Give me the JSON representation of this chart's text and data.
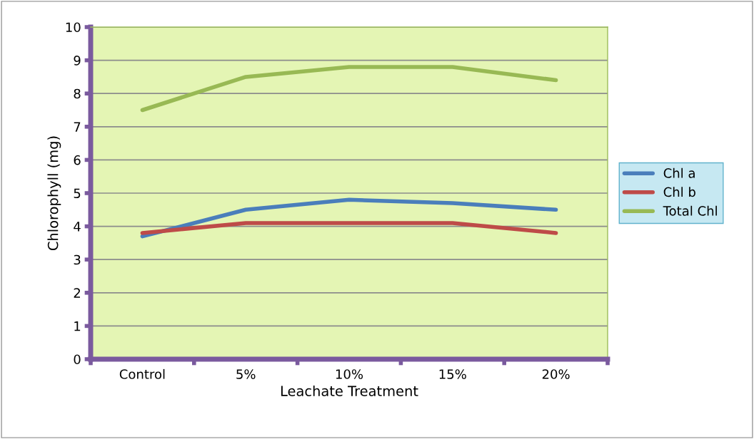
{
  "chart_data": {
    "type": "line",
    "xlabel": "Leachate Treatment",
    "ylabel": "Chlorophyll (mg)",
    "categories": [
      "Control",
      "5%",
      "10%",
      "15%",
      "20%"
    ],
    "series": [
      {
        "name": "Chl a",
        "color": "#4a7ebb",
        "values": [
          3.7,
          4.5,
          4.8,
          4.7,
          4.5
        ]
      },
      {
        "name": "Chl b",
        "color": "#be4b48",
        "values": [
          3.8,
          4.1,
          4.1,
          4.1,
          3.8
        ]
      },
      {
        "name": "Total Chl",
        "color": "#98b954",
        "values": [
          7.5,
          8.5,
          8.8,
          8.8,
          8.4
        ]
      }
    ],
    "ylim": [
      0,
      10
    ],
    "yticks": [
      0,
      1,
      2,
      3,
      4,
      5,
      6,
      7,
      8,
      9,
      10
    ],
    "grid": "y",
    "legend": "right",
    "marker": "none",
    "line_style": "solid"
  }
}
